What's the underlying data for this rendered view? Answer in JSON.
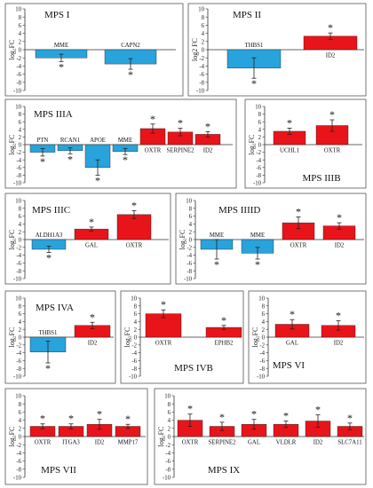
{
  "chart_data": [
    {
      "type": "bar",
      "title": "MPS I",
      "ylabel": "log₂FC",
      "ylim": [
        -10,
        10
      ],
      "yticks": [
        10,
        8,
        6,
        4,
        2,
        0,
        -2,
        -4,
        -6,
        -8,
        -10
      ],
      "grid": false,
      "categories": [
        "MME",
        "CAPN2"
      ],
      "values": [
        -2.0,
        -3.5
      ],
      "errors": [
        0.9,
        1.3
      ],
      "significance": [
        "*",
        "*"
      ],
      "colors": [
        "#29a3dc",
        "#29a3dc"
      ]
    },
    {
      "type": "bar",
      "title": "MPS II",
      "ylabel": "log2 FC",
      "ylim": [
        -10,
        10
      ],
      "yticks": [
        10,
        8,
        6,
        4,
        2,
        0,
        -2,
        -4,
        -6,
        -8,
        -10
      ],
      "grid": false,
      "categories": [
        "THBS1",
        "ID2"
      ],
      "values": [
        -4.5,
        3.3
      ],
      "errors": [
        2.5,
        0.8
      ],
      "significance": [
        "*",
        "*"
      ],
      "colors": [
        "#29a3dc",
        "#e8141a"
      ]
    },
    {
      "type": "bar",
      "title": "MPS IIIA",
      "ylabel": "log₂FC",
      "ylim": [
        -10,
        10
      ],
      "yticks": [
        10,
        8,
        6,
        4,
        2,
        0,
        -2,
        -4,
        -6,
        -8,
        -10
      ],
      "grid": false,
      "categories": [
        "PTN",
        "RCAN1",
        "APOE",
        "MME",
        "OXTR",
        "SERPINE2",
        "ID2"
      ],
      "values": [
        -2.0,
        -1.6,
        -6.0,
        -1.8,
        4.2,
        3.3,
        2.7
      ],
      "errors": [
        1.0,
        0.8,
        2.0,
        0.8,
        1.2,
        1.0,
        0.7
      ],
      "significance": [
        "*",
        "*",
        "*",
        "*",
        "*",
        "*",
        "*"
      ],
      "colors": [
        "#29a3dc",
        "#29a3dc",
        "#29a3dc",
        "#29a3dc",
        "#e8141a",
        "#e8141a",
        "#e8141a"
      ]
    },
    {
      "type": "bar",
      "title": "MPS IIIB",
      "ylabel": "log₂FC",
      "ylim": [
        -10,
        10
      ],
      "yticks": [
        10,
        8,
        6,
        4,
        2,
        0,
        -2,
        -4,
        -6,
        -8,
        -10
      ],
      "grid": false,
      "categories": [
        "UCHL1",
        "OXTR"
      ],
      "values": [
        3.5,
        5.0
      ],
      "errors": [
        0.8,
        1.5
      ],
      "significance": [
        "*",
        "*"
      ],
      "colors": [
        "#e8141a",
        "#e8141a"
      ]
    },
    {
      "type": "bar",
      "title": "MPS IIIC",
      "ylabel": "log₂FC",
      "ylim": [
        -10,
        10
      ],
      "yticks": [
        10,
        8,
        6,
        4,
        2,
        0,
        -2,
        -4,
        -6,
        -8,
        -10
      ],
      "grid": false,
      "categories": [
        "ALDH1A3",
        "GAL",
        "OXTR"
      ],
      "values": [
        -2.5,
        2.7,
        6.4
      ],
      "errors": [
        0.8,
        0.5,
        1.0
      ],
      "significance": [
        "*",
        "*",
        "*"
      ],
      "colors": [
        "#29a3dc",
        "#e8141a",
        "#e8141a"
      ]
    },
    {
      "type": "bar",
      "title": "MPS IIIID",
      "ylabel": "log₂FC",
      "ylim": [
        -10,
        10
      ],
      "yticks": [
        10,
        8,
        6,
        4,
        2,
        0,
        -2,
        -4,
        -6,
        -8,
        -10
      ],
      "grid": false,
      "categories": [
        "MME",
        "MME",
        "OXTR",
        "ID2"
      ],
      "values": [
        -2.5,
        -3.5,
        4.3,
        3.5
      ],
      "errors": [
        2.5,
        1.5,
        1.5,
        0.8
      ],
      "significance": [
        "*",
        "*",
        "*",
        "*"
      ],
      "colors": [
        "#29a3dc",
        "#29a3dc",
        "#e8141a",
        "#e8141a"
      ]
    },
    {
      "type": "bar",
      "title": "MPS IVA",
      "ylabel": "log₂FC",
      "ylim": [
        -10,
        10
      ],
      "yticks": [
        10,
        8,
        6,
        4,
        2,
        0,
        -2,
        -4,
        -6,
        -8,
        -10
      ],
      "grid": false,
      "categories": [
        "THBS1",
        "ID2"
      ],
      "values": [
        -3.8,
        3.0
      ],
      "errors": [
        2.8,
        0.8
      ],
      "significance": [
        "*",
        "*"
      ],
      "colors": [
        "#29a3dc",
        "#e8141a"
      ]
    },
    {
      "type": "bar",
      "title": "MPS IVB",
      "ylabel": "log₂FC",
      "ylim": [
        -10,
        10
      ],
      "yticks": [
        10,
        8,
        6,
        4,
        2,
        0,
        -2,
        -4,
        -6,
        -8,
        -10
      ],
      "grid": false,
      "categories": [
        "OXTR",
        "EPHB2"
      ],
      "values": [
        6.0,
        2.5
      ],
      "errors": [
        1.0,
        0.5
      ],
      "significance": [
        "*",
        "*"
      ],
      "colors": [
        "#e8141a",
        "#e8141a"
      ]
    },
    {
      "type": "bar",
      "title": "MPS VI",
      "ylabel": "log₂FC",
      "ylim": [
        -10,
        10
      ],
      "yticks": [
        10,
        8,
        6,
        4,
        2,
        0,
        -2,
        -4,
        -6,
        -8,
        -10
      ],
      "grid": false,
      "categories": [
        "GAL",
        "ID2"
      ],
      "values": [
        3.3,
        3.0
      ],
      "errors": [
        1.2,
        1.2
      ],
      "significance": [
        "*",
        "*"
      ],
      "colors": [
        "#e8141a",
        "#e8141a"
      ]
    },
    {
      "type": "bar",
      "title": "MPS VII",
      "ylabel": "log₂FC",
      "ylim": [
        -10,
        10
      ],
      "yticks": [
        10,
        8,
        6,
        4,
        2,
        0,
        -2,
        -4,
        -6,
        -8,
        -10
      ],
      "grid": false,
      "categories": [
        "OXTR",
        "ITGA3",
        "ID2",
        "MMP17"
      ],
      "values": [
        2.5,
        2.5,
        3.0,
        2.5
      ],
      "errors": [
        0.6,
        0.6,
        1.2,
        0.5
      ],
      "significance": [
        "*",
        "*",
        "*",
        "*"
      ],
      "colors": [
        "#e8141a",
        "#e8141a",
        "#e8141a",
        "#e8141a"
      ]
    },
    {
      "type": "bar",
      "title": "MPS IX",
      "ylabel": "log₂FC",
      "ylim": [
        -10,
        10
      ],
      "yticks": [
        10,
        8,
        6,
        4,
        2,
        0,
        -2,
        -4,
        -6,
        -8,
        -10
      ],
      "grid": false,
      "categories": [
        "OXTR",
        "SERPINE2",
        "GAL",
        "VLDLR",
        "ID2",
        "SLC7A11"
      ],
      "values": [
        4.0,
        2.5,
        3.0,
        3.0,
        3.8,
        2.5
      ],
      "errors": [
        1.5,
        1.0,
        1.2,
        0.8,
        1.5,
        0.8
      ],
      "significance": [
        "*",
        "*",
        "*",
        "*",
        "*",
        "*"
      ],
      "colors": [
        "#e8141a",
        "#e8141a",
        "#e8141a",
        "#e8141a",
        "#e8141a",
        "#e8141a"
      ]
    }
  ]
}
